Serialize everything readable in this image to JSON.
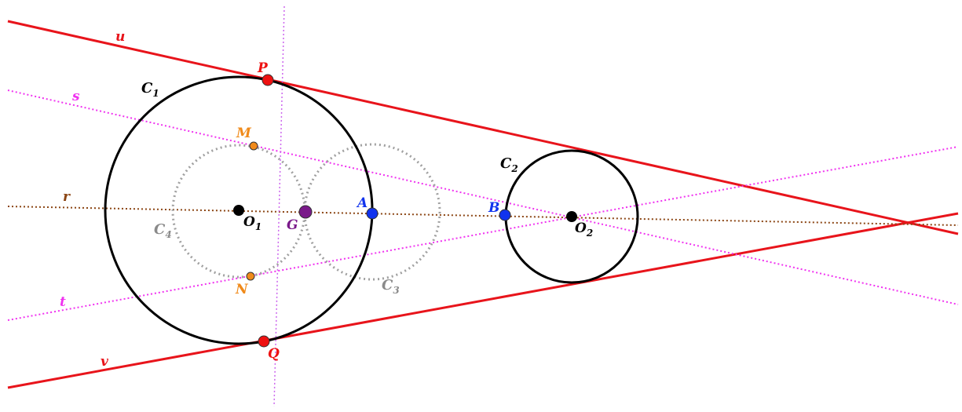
{
  "colors": {
    "tangent_line": "#e8141b",
    "magenta_line": "#f033f0",
    "axis_line": "#8b4513",
    "perp_line": "#cc66ee",
    "circle": "#000000",
    "aux_circle": "#a0a0a0",
    "point_red": "#ee1111",
    "point_blue": "#1133ee",
    "point_purple": "#7a1a8a",
    "point_orange": "#f08a1a",
    "label_gray": "#8a8a8a"
  },
  "labels": {
    "u": "u",
    "s": "s",
    "r": "r",
    "t": "t",
    "v": "v",
    "C1": "C",
    "C1_sub": "1",
    "C2": "C",
    "C2_sub": "2",
    "C3": "C",
    "C3_sub": "3",
    "C4": "C",
    "C4_sub": "4",
    "P": "P",
    "Q": "Q",
    "M": "M",
    "N": "N",
    "A": "A",
    "B": "B",
    "G": "G",
    "O1": "O",
    "O1_sub": "1",
    "O2": "O",
    "O2_sub": "2"
  }
}
